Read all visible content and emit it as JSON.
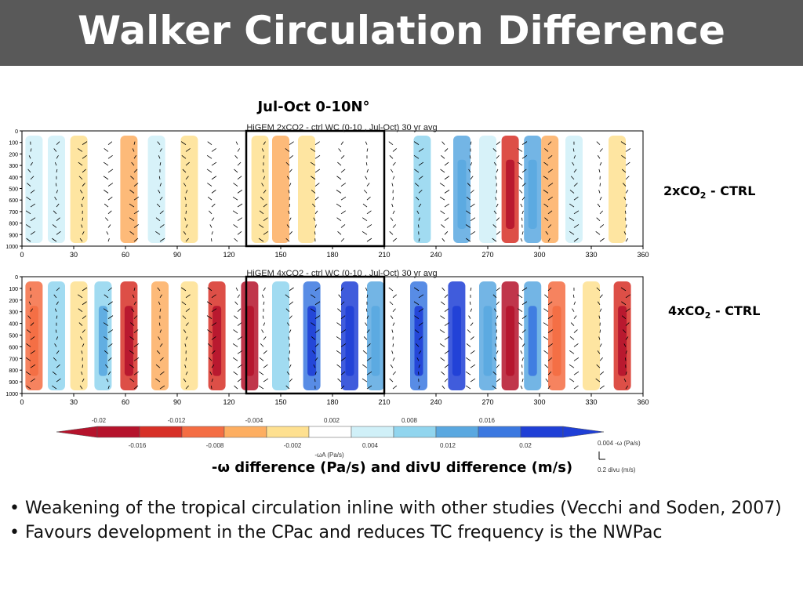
{
  "slide": {
    "title": "Walker Circulation Difference",
    "figure_heading": "Jul-Oct 0-10N°",
    "row_label_2x": "2xCO",
    "row_label_2x_sub": "2",
    "row_label_2x_rest": " - CTRL",
    "row_label_4x": "4xCO",
    "row_label_4x_sub": "2",
    "row_label_4x_rest": " - CTRL",
    "caption": "-ω difference (Pa/s) and divU difference (m/s)",
    "bullets": [
      "• Weakening of the tropical circulation inline with other studies (Vecchi and Soden, 2007)",
      "• Favours development in the CPac and reduces TC frequency is the NWPac"
    ]
  },
  "chart_data": [
    {
      "type": "heatmap",
      "title": "HiGEM 2xCO2 - ctrl WC (0-10 , Jul-Oct) 30 yr avg",
      "x_ticks": [
        "0",
        "30",
        "60",
        "90",
        "120",
        "150",
        "180",
        "210",
        "240",
        "270",
        "300",
        "330",
        "360"
      ],
      "y_ticks": [
        "0",
        "100",
        "200",
        "300",
        "400",
        "500",
        "600",
        "700",
        "800",
        "900",
        "1000"
      ],
      "xlim": [
        0,
        360
      ],
      "ylim": [
        1000,
        0
      ],
      "highlight_box_lon": [
        130,
        210
      ],
      "columns": [
        {
          "lon": 7,
          "v": 0.004
        },
        {
          "lon": 20,
          "v": 0.006
        },
        {
          "lon": 33,
          "v": -0.003
        },
        {
          "lon": 47,
          "v": 0.002
        },
        {
          "lon": 62,
          "v": -0.007
        },
        {
          "lon": 78,
          "v": 0.006
        },
        {
          "lon": 97,
          "v": -0.004
        },
        {
          "lon": 113,
          "v": 0.001
        },
        {
          "lon": 138,
          "v": -0.005
        },
        {
          "lon": 150,
          "v": -0.008
        },
        {
          "lon": 165,
          "v": -0.003
        },
        {
          "lon": 195,
          "v": 0.0
        },
        {
          "lon": 232,
          "v": 0.008
        },
        {
          "lon": 255,
          "v": 0.011
        },
        {
          "lon": 270,
          "v": 0.006
        },
        {
          "lon": 283,
          "v": -0.016
        },
        {
          "lon": 296,
          "v": 0.012
        },
        {
          "lon": 306,
          "v": -0.009
        },
        {
          "lon": 320,
          "v": 0.004
        },
        {
          "lon": 345,
          "v": -0.004
        },
        {
          "lon": 355,
          "v": -0.002
        }
      ]
    },
    {
      "type": "heatmap",
      "title": "HiGEM 4xCO2 - ctrl WC (0-10 , Jul-Oct) 30 yr avg",
      "x_ticks": [
        "0",
        "30",
        "60",
        "90",
        "120",
        "150",
        "180",
        "210",
        "240",
        "270",
        "300",
        "330",
        "360"
      ],
      "y_ticks": [
        "0",
        "100",
        "200",
        "300",
        "400",
        "500",
        "600",
        "700",
        "800",
        "900",
        "1000"
      ],
      "xlim": [
        0,
        360
      ],
      "ylim": [
        1000,
        0
      ],
      "highlight_box_lon": [
        130,
        210
      ],
      "columns": [
        {
          "lon": 7,
          "v": -0.012
        },
        {
          "lon": 20,
          "v": 0.008
        },
        {
          "lon": 33,
          "v": -0.006
        },
        {
          "lon": 47,
          "v": 0.01
        },
        {
          "lon": 62,
          "v": -0.016
        },
        {
          "lon": 80,
          "v": -0.008
        },
        {
          "lon": 97,
          "v": -0.006
        },
        {
          "lon": 113,
          "v": -0.016
        },
        {
          "lon": 132,
          "v": -0.02
        },
        {
          "lon": 150,
          "v": 0.008
        },
        {
          "lon": 168,
          "v": 0.018
        },
        {
          "lon": 190,
          "v": 0.022
        },
        {
          "lon": 205,
          "v": 0.012
        },
        {
          "lon": 230,
          "v": 0.018
        },
        {
          "lon": 252,
          "v": 0.022
        },
        {
          "lon": 270,
          "v": 0.012
        },
        {
          "lon": 283,
          "v": -0.02
        },
        {
          "lon": 296,
          "v": 0.014
        },
        {
          "lon": 310,
          "v": -0.012
        },
        {
          "lon": 330,
          "v": -0.004
        },
        {
          "lon": 348,
          "v": -0.016
        }
      ]
    }
  ],
  "colorbar": {
    "upper_ticks": [
      "-0.02",
      "-0.012",
      "-0.004",
      "0.002",
      "0.008",
      "0.016"
    ],
    "lower_ticks": [
      "-0.016",
      "-0.008",
      "-0.002",
      "0.004",
      "0.012",
      "0.02"
    ],
    "label": "-ωA (Pa/s)",
    "colors": [
      "#b5132c",
      "#d73027",
      "#f46d43",
      "#fdae61",
      "#fee090",
      "#ffffff",
      "#d0f0f8",
      "#91d5ee",
      "#5aa8e0",
      "#3b78e0",
      "#1f3fd6"
    ]
  },
  "vector_legend": {
    "omega_ref": "0.004 -ω (Pa/s)",
    "div_ref": "0.2 divu (m/s)"
  }
}
